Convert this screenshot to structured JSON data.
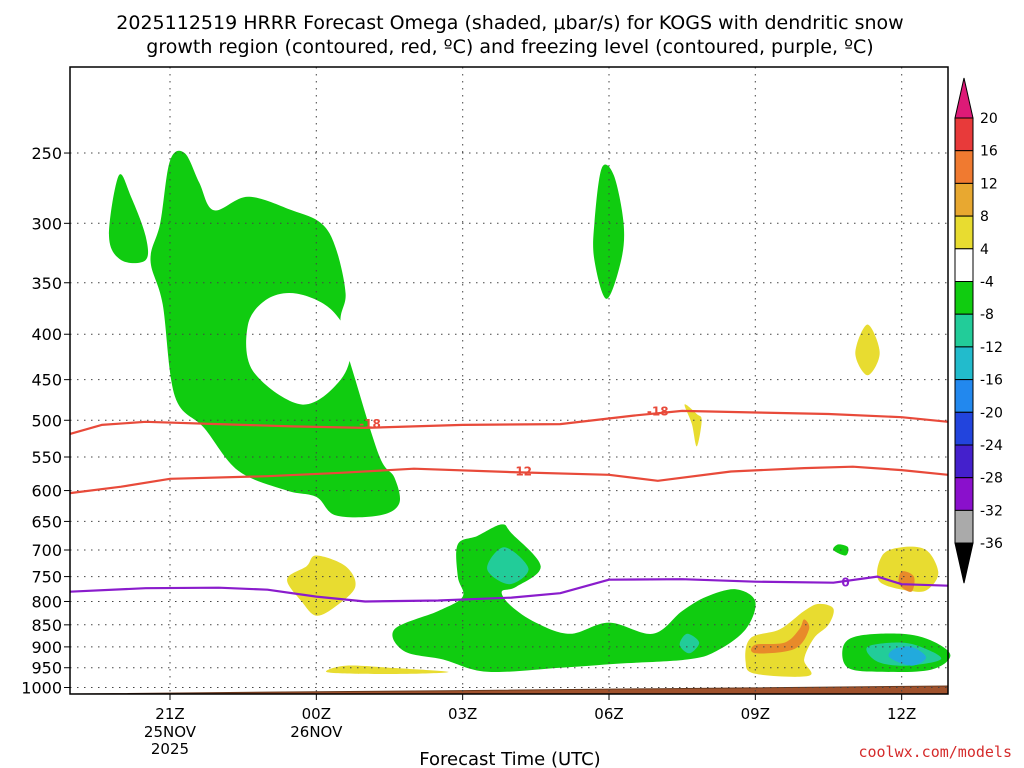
{
  "title": {
    "line1": "2025112519 HRRR Forecast Omega (shaded, μbar/s) for KOGS with dendritic snow",
    "line2": "growth region (contoured, red, ºC) and freezing level (contoured, purple, ºC)"
  },
  "credit": "coolwx.com/models",
  "colors": {
    "green": "#10cc10",
    "teal": "#22cc99",
    "cyan": "#22aadd",
    "yellow": "#e8dc30",
    "orange": "#e88a2a",
    "red_contour": "#e84a3a",
    "purple_contour": "#8a1ccc",
    "ground": "#a0522d"
  },
  "chart_data": {
    "type": "heatmap",
    "title": "2025112519 HRRR Forecast Omega (shaded, μbar/s) for KOGS with dendritic snow growth region (contoured, red, ºC) and freezing level (contoured, purple, ºC)",
    "xlabel": "Forecast Time (UTC)",
    "ylabel": "",
    "x_ticks": [
      {
        "label": "21Z",
        "sub": [
          "25NOV",
          "2025"
        ],
        "hour": 2
      },
      {
        "label": "00Z",
        "sub": [
          "26NOV"
        ],
        "hour": 5
      },
      {
        "label": "03Z",
        "sub": [],
        "hour": 8
      },
      {
        "label": "06Z",
        "sub": [],
        "hour": 11
      },
      {
        "label": "09Z",
        "sub": [],
        "hour": 14
      },
      {
        "label": "12Z",
        "sub": [],
        "hour": 17
      }
    ],
    "xlim_hours": [
      -0.05,
      17.95
    ],
    "y_ticks": [
      250,
      300,
      350,
      400,
      450,
      500,
      550,
      600,
      650,
      700,
      750,
      800,
      850,
      900,
      950,
      1000
    ],
    "ylim_hPa": [
      1017,
      200
    ],
    "y_scale": "log",
    "grid": "dotted",
    "colorbar": {
      "labels": [
        "20",
        "16",
        "12",
        "8",
        "4",
        "-4",
        "-8",
        "-12",
        "-16",
        "-20",
        "-24",
        "-28",
        "-32",
        "-36"
      ],
      "colors": [
        "#dd1a77",
        "#e83a3a",
        "#f07a30",
        "#e8a830",
        "#e8dc30",
        "#ffffff",
        "#10cc10",
        "#22cc99",
        "#22bbcc",
        "#2288ee",
        "#2244dd",
        "#4420cc",
        "#8a10cc",
        "#aaaaaa",
        "#000000"
      ]
    },
    "omega_regions": [
      {
        "level": "-4 to -8",
        "color": "#10cc10",
        "points": [
          [
            0.95,
            265
          ],
          [
            0.75,
            310
          ],
          [
            1.0,
            330
          ],
          [
            1.5,
            330
          ],
          [
            1.5,
            310
          ],
          [
            1.2,
            280
          ]
        ]
      },
      {
        "level": "-4 to -8",
        "color": "#10cc10",
        "points": [
          [
            2.0,
            255
          ],
          [
            1.8,
            300
          ],
          [
            1.6,
            330
          ],
          [
            1.85,
            370
          ],
          [
            2.1,
            470
          ],
          [
            2.7,
            510
          ],
          [
            3.4,
            570
          ],
          [
            4.4,
            600
          ],
          [
            5.0,
            610
          ],
          [
            5.4,
            640
          ],
          [
            6.3,
            640
          ],
          [
            6.7,
            620
          ],
          [
            6.6,
            580
          ],
          [
            6.3,
            550
          ],
          [
            5.8,
            450
          ],
          [
            5.5,
            390
          ],
          [
            5.6,
            360
          ],
          [
            5.4,
            320
          ],
          [
            5.1,
            300
          ],
          [
            4.5,
            290
          ],
          [
            3.6,
            280
          ],
          [
            2.9,
            290
          ],
          [
            2.6,
            270
          ],
          [
            2.3,
            250
          ]
        ]
      },
      {
        "level": "-4 to -8",
        "color": "#10cc10",
        "points": [
          [
            10.85,
            260
          ],
          [
            10.7,
            300
          ],
          [
            10.7,
            330
          ],
          [
            10.95,
            365
          ],
          [
            11.25,
            330
          ],
          [
            11.3,
            300
          ],
          [
            11.1,
            265
          ]
        ]
      },
      {
        "level": "-4 to -8",
        "color": "#10cc10",
        "points": [
          [
            7.9,
            690
          ],
          [
            7.9,
            750
          ],
          [
            8.0,
            790
          ],
          [
            7.5,
            820
          ],
          [
            6.6,
            860
          ],
          [
            6.8,
            910
          ],
          [
            7.6,
            930
          ],
          [
            8.5,
            960
          ],
          [
            10.0,
            950
          ],
          [
            11.2,
            940
          ],
          [
            12.6,
            930
          ],
          [
            13.2,
            910
          ],
          [
            13.8,
            860
          ],
          [
            14.0,
            800
          ],
          [
            13.6,
            775
          ],
          [
            13.0,
            790
          ],
          [
            12.5,
            820
          ],
          [
            11.9,
            870
          ],
          [
            11.0,
            845
          ],
          [
            10.2,
            870
          ],
          [
            9.5,
            845
          ],
          [
            9.0,
            810
          ],
          [
            8.8,
            780
          ],
          [
            9.1,
            770
          ],
          [
            9.6,
            730
          ],
          [
            9.0,
            670
          ],
          [
            8.8,
            655
          ],
          [
            8.3,
            675
          ]
        ]
      },
      {
        "level": "-4 to -8",
        "color": "#10cc10",
        "points": [
          [
            15.7,
            690
          ],
          [
            15.6,
            700
          ],
          [
            15.85,
            710
          ],
          [
            15.9,
            695
          ]
        ]
      },
      {
        "level": "-4 to -8",
        "color": "#10cc10",
        "points": [
          [
            16.1,
            875
          ],
          [
            15.8,
            900
          ],
          [
            15.9,
            950
          ],
          [
            16.6,
            960
          ],
          [
            17.6,
            955
          ],
          [
            18.0,
            920
          ],
          [
            17.6,
            885
          ],
          [
            17.0,
            870
          ]
        ]
      },
      {
        "level": "4 to 8",
        "color": "#e8dc30",
        "points": [
          [
            4.8,
            730
          ],
          [
            4.4,
            755
          ],
          [
            4.7,
            800
          ],
          [
            5.0,
            830
          ],
          [
            5.4,
            810
          ],
          [
            5.8,
            770
          ],
          [
            5.6,
            730
          ],
          [
            5.0,
            710
          ]
        ]
      },
      {
        "level": "4 to 8",
        "color": "#e8dc30",
        "points": [
          [
            5.2,
            960
          ],
          [
            5.8,
            965
          ],
          [
            7.0,
            965
          ],
          [
            7.7,
            960
          ],
          [
            6.5,
            950
          ],
          [
            5.6,
            945
          ]
        ]
      },
      {
        "level": "4 to 8",
        "color": "#e8dc30",
        "points": [
          [
            12.8,
            492
          ],
          [
            12.55,
            480
          ],
          [
            12.7,
            505
          ],
          [
            12.8,
            535
          ],
          [
            12.9,
            500
          ]
        ]
      },
      {
        "level": "4 to 8",
        "color": "#e8dc30",
        "points": [
          [
            16.3,
            390
          ],
          [
            16.05,
            420
          ],
          [
            16.3,
            445
          ],
          [
            16.55,
            420
          ]
        ]
      },
      {
        "level": "4 to 8",
        "color": "#e8dc30",
        "points": [
          [
            16.6,
            710
          ],
          [
            16.55,
            760
          ],
          [
            17.3,
            780
          ],
          [
            17.6,
            770
          ],
          [
            17.75,
            740
          ],
          [
            17.5,
            700
          ],
          [
            17.0,
            695
          ]
        ]
      },
      {
        "level": "4 to 8",
        "color": "#e8dc30",
        "points": [
          [
            14.5,
            860
          ],
          [
            13.9,
            880
          ],
          [
            13.8,
            935
          ],
          [
            14.0,
            965
          ],
          [
            15.1,
            970
          ],
          [
            15.0,
            930
          ],
          [
            15.2,
            880
          ],
          [
            15.5,
            850
          ],
          [
            15.6,
            815
          ],
          [
            15.3,
            805
          ],
          [
            15.0,
            820
          ]
        ]
      },
      {
        "level": "8 to 12",
        "color": "#e88a2a",
        "points": [
          [
            14.0,
            895
          ],
          [
            14.0,
            915
          ],
          [
            14.8,
            905
          ],
          [
            15.1,
            860
          ],
          [
            15.0,
            838
          ],
          [
            14.9,
            860
          ],
          [
            14.6,
            890
          ]
        ]
      },
      {
        "level": "8 to 12",
        "color": "#e88a2a",
        "points": [
          [
            17.0,
            740
          ],
          [
            16.95,
            765
          ],
          [
            17.2,
            780
          ],
          [
            17.25,
            750
          ]
        ]
      },
      {
        "level": "-8 to -12",
        "color": "#22cc99",
        "points": [
          [
            8.85,
            695
          ],
          [
            8.5,
            735
          ],
          [
            8.95,
            765
          ],
          [
            9.35,
            735
          ]
        ]
      },
      {
        "level": "-8 to -12",
        "color": "#22cc99",
        "points": [
          [
            12.6,
            870
          ],
          [
            12.45,
            895
          ],
          [
            12.65,
            915
          ],
          [
            12.85,
            890
          ]
        ]
      },
      {
        "level": "-8 to -12",
        "color": "#22cc99",
        "points": [
          [
            16.3,
            900
          ],
          [
            16.5,
            935
          ],
          [
            17.1,
            945
          ],
          [
            17.8,
            930
          ],
          [
            17.5,
            905
          ],
          [
            17.0,
            890
          ]
        ]
      },
      {
        "level": "-12 to -16",
        "color": "#22aadd",
        "points": [
          [
            16.85,
            905
          ],
          [
            16.75,
            925
          ],
          [
            17.2,
            945
          ],
          [
            17.5,
            925
          ],
          [
            17.2,
            900
          ]
        ]
      }
    ],
    "series": [
      {
        "name": "-18",
        "color": "#e84a3a",
        "x": [
          -0.05,
          0.6,
          1.5,
          3.0,
          4.5,
          6.0,
          8.0,
          10.0,
          11.5,
          12.5,
          14.0,
          15.5,
          17.0,
          17.95
        ],
        "y": [
          518,
          506,
          502,
          505,
          508,
          510,
          506,
          505,
          494,
          488,
          490,
          492,
          496,
          502
        ]
      },
      {
        "name": "-12",
        "color": "#e84a3a",
        "x": [
          -0.05,
          1.0,
          2.0,
          4.0,
          5.5,
          7.0,
          9.0,
          11.0,
          12.0,
          13.5,
          15.0,
          16.0,
          17.0,
          17.95
        ],
        "y": [
          604,
          594,
          582,
          578,
          573,
          567,
          572,
          576,
          585,
          571,
          566,
          564,
          569,
          576
        ]
      },
      {
        "name": "0",
        "color": "#8a1ccc",
        "x": [
          -0.05,
          1.5,
          3.0,
          4.0,
          5.0,
          6.0,
          7.5,
          9.0,
          10.0,
          11.0,
          12.5,
          14.0,
          15.6,
          16.5,
          17.0,
          17.95
        ],
        "y": [
          780,
          773,
          772,
          776,
          790,
          800,
          798,
          792,
          783,
          756,
          755,
          760,
          762,
          750,
          765,
          768
        ]
      }
    ],
    "contour_labels": [
      {
        "text": "-18",
        "color": "#e84a3a",
        "x": 6.1,
        "y": 505
      },
      {
        "text": "-18",
        "color": "#e84a3a",
        "x": 12.0,
        "y": 489
      },
      {
        "text": "-12",
        "color": "#e84a3a",
        "x": 9.2,
        "y": 571
      },
      {
        "text": "0",
        "color": "#8a1ccc",
        "x": 15.85,
        "y": 762
      }
    ],
    "surface_hPa": [
      [
        -0.05,
        1017
      ],
      [
        4.0,
        1012
      ],
      [
        8.0,
        1008
      ],
      [
        12.0,
        1003
      ],
      [
        17.95,
        996
      ]
    ]
  }
}
